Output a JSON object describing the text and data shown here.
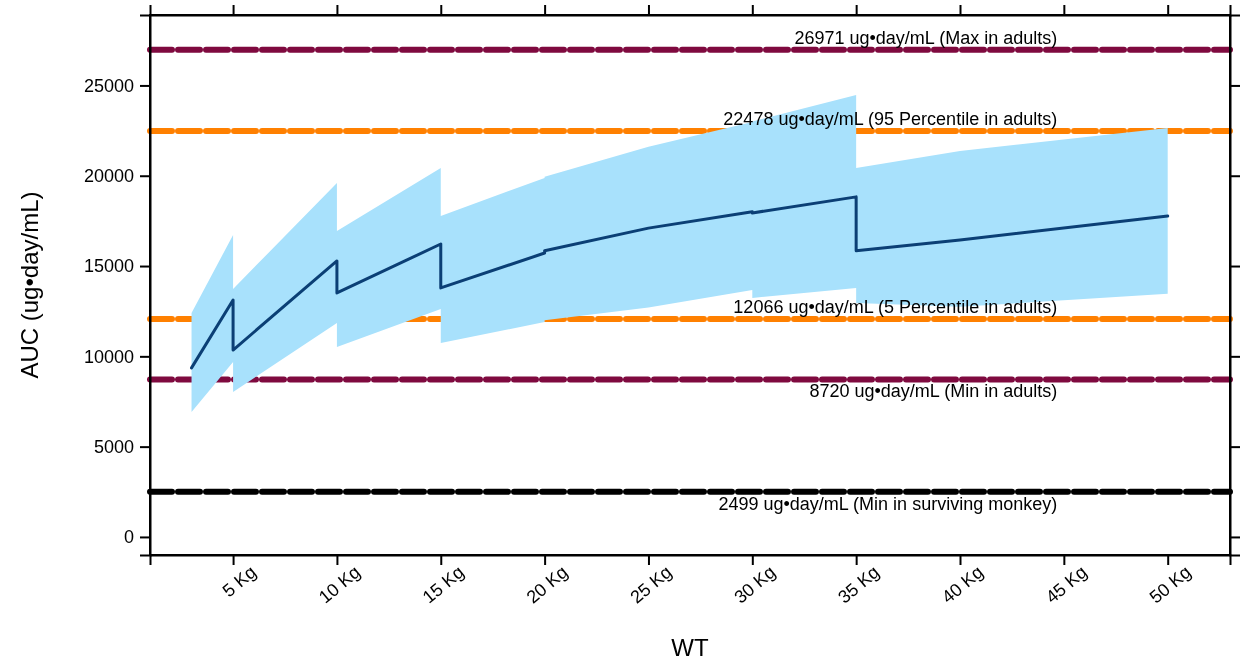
{
  "chart_data": {
    "type": "line",
    "xlabel": "WT",
    "ylabel": "AUC (ug•day/mL)",
    "xlim": [
      1,
      53
    ],
    "xticks": [
      {
        "value": 5,
        "label": "5 Kg"
      },
      {
        "value": 10,
        "label": "10 Kg"
      },
      {
        "value": 15,
        "label": "15 Kg"
      },
      {
        "value": 20,
        "label": "20 Kg"
      },
      {
        "value": 25,
        "label": "25 Kg"
      },
      {
        "value": 30,
        "label": "30 Kg"
      },
      {
        "value": 35,
        "label": "35 Kg"
      },
      {
        "value": 40,
        "label": "40 Kg"
      },
      {
        "value": 45,
        "label": "45 Kg"
      },
      {
        "value": 50,
        "label": "50 Kg"
      }
    ],
    "ylim": [
      -1000,
      28900
    ],
    "yticks": [
      0,
      5000,
      10000,
      15000,
      20000,
      25000
    ],
    "grid": false,
    "marker": "none",
    "line_style": "solid",
    "series": [
      {
        "color": "#0b3f75",
        "x": [
          3,
          5,
          5,
          10,
          10,
          15,
          15,
          20,
          20,
          25,
          30,
          30,
          35,
          35,
          40,
          50
        ],
        "values": [
          9360,
          13120,
          10350,
          15280,
          13510,
          16220,
          13790,
          15720,
          15850,
          17100,
          18000,
          17940,
          18830,
          15840,
          16440,
          17770
        ],
        "upper": [
          12400,
          16720,
          13730,
          19600,
          16940,
          20430,
          17770,
          19880,
          19950,
          21600,
          22980,
          23000,
          24470,
          20430,
          21370,
          22650
        ],
        "lower": [
          6920,
          9690,
          8030,
          11850,
          10520,
          12620,
          10740,
          11900,
          12000,
          12700,
          13680,
          13230,
          13790,
          12950,
          12740,
          13460
        ]
      }
    ],
    "ref_lines": [
      {
        "axis": "y",
        "value": 26971,
        "label": "26971 ug•day/mL (Max in adults)",
        "color": "#7f0a3f",
        "line_style": "dashed"
      },
      {
        "axis": "y",
        "value": 22478,
        "label": "22478 ug•day/mL (95 Percentile in adults)",
        "color": "#ff8000",
        "line_style": "dashed"
      },
      {
        "axis": "y",
        "value": 12066,
        "label": "12066 ug•day/mL (5 Percentile in adults)",
        "color": "#ff8000",
        "line_style": "dashed"
      },
      {
        "axis": "y",
        "value": 8720,
        "label": "8720 ug•day/mL (Min in adults)",
        "color": "#7f0a3f",
        "line_style": "dashed"
      },
      {
        "axis": "y",
        "value": 2499,
        "label": "2499 ug•day/mL (Min in surviving monkey)",
        "color": "#000000",
        "line_style": "dashed"
      }
    ]
  }
}
